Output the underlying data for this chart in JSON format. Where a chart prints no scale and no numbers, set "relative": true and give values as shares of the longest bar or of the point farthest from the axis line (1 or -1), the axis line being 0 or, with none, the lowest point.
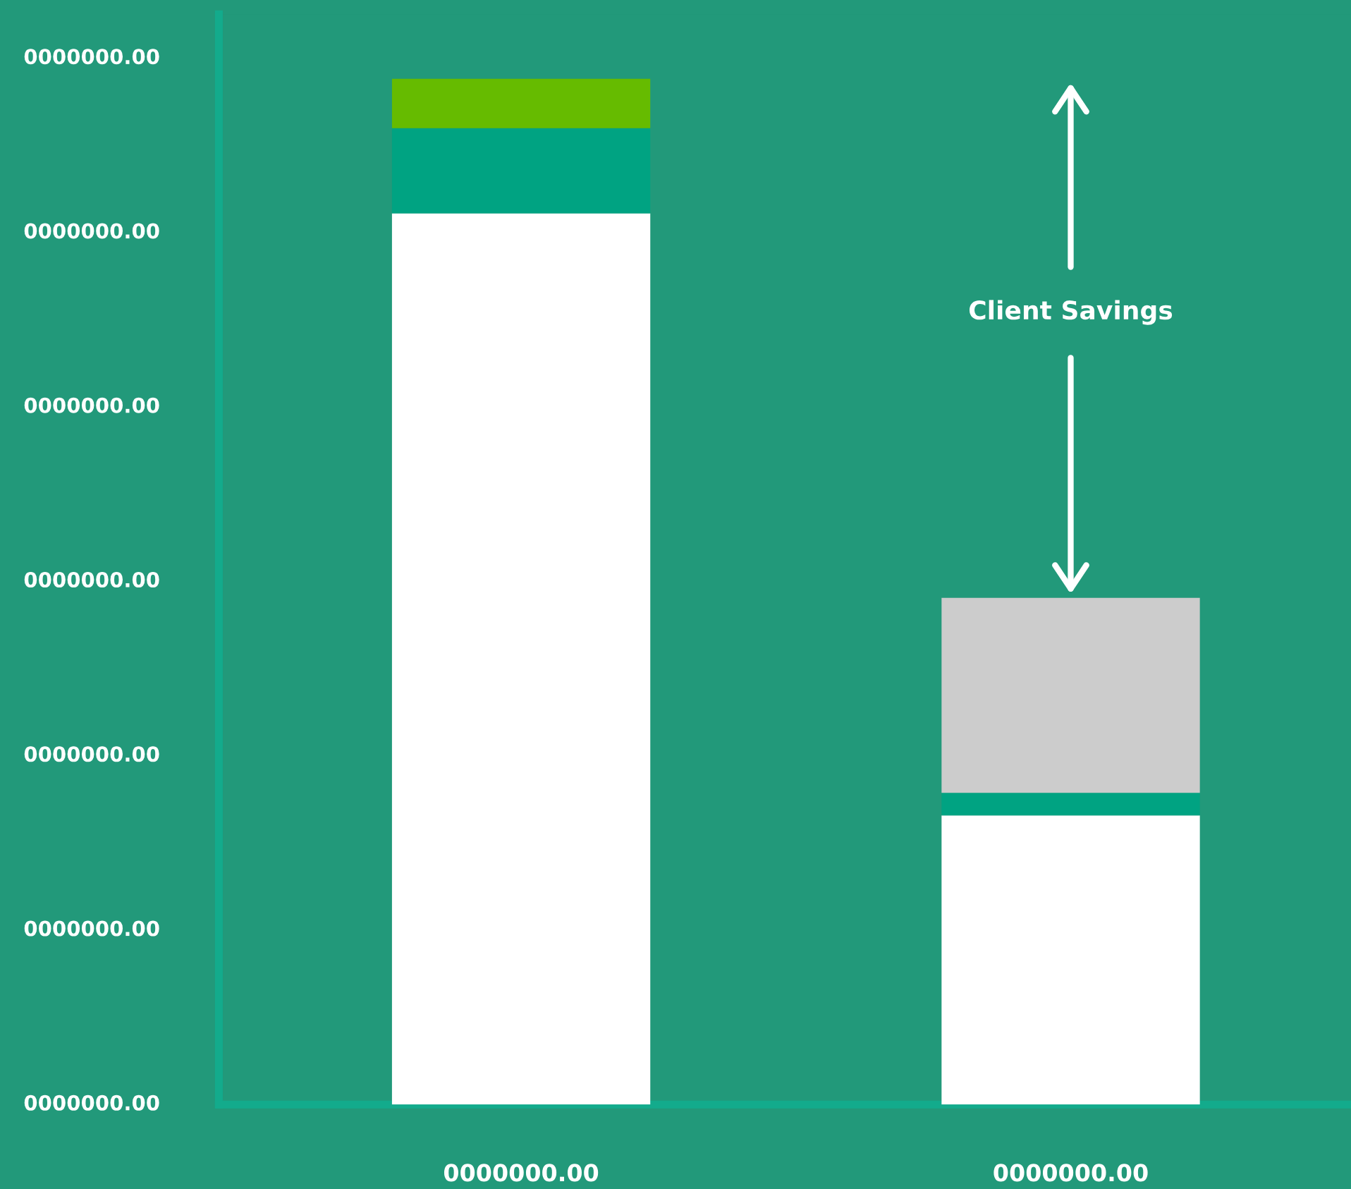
{
  "chart_data": {
    "type": "bar",
    "stacked": true,
    "relative": true,
    "categories": [
      "0000000.00",
      "0000000.00"
    ],
    "series": [
      {
        "color": "#ffffff",
        "values": [
          0.869,
          0.282
        ]
      },
      {
        "color": "#00a382",
        "values": [
          0.083,
          0.022
        ]
      },
      {
        "colors": [
          "#66bb00",
          "#cccccc"
        ],
        "values": [
          0.048,
          0.19
        ]
      }
    ],
    "annotations": [
      "Client Savings",
      "0000000.00",
      "0000000.00",
      "0000000.00",
      "0000000.00",
      "0000000.00",
      "0000000.00",
      "0000000.00"
    ]
  }
}
